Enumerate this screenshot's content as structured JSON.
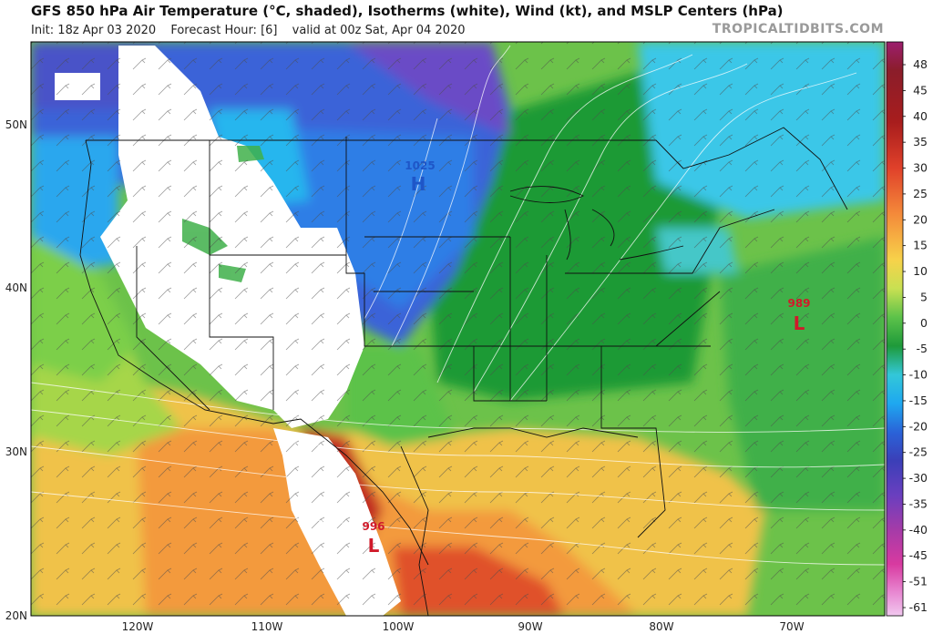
{
  "header": {
    "title": "GFS 850 hPa Air Temperature (°C, shaded), Isotherms (white), Wind (kt), and MSLP Centers (hPa)",
    "init": "Init: 18z Apr 03 2020",
    "forecast": "Forecast Hour: [6]",
    "valid": "valid at 00z Sat, Apr 04 2020",
    "brand": "TROPICALTIDBITS.COM"
  },
  "axes": {
    "lat_labels": [
      "50N",
      "40N",
      "30N",
      "20N"
    ],
    "lon_labels": [
      "120W",
      "110W",
      "100W",
      "90W",
      "80W",
      "70W"
    ]
  },
  "colorbar": {
    "ticks": [
      "48",
      "45",
      "40",
      "35",
      "30",
      "25",
      "20",
      "15",
      "10",
      "5",
      "0",
      "-5",
      "-10",
      "-15",
      "-20",
      "-25",
      "-30",
      "-35",
      "-40",
      "-45",
      "-51",
      "-61"
    ]
  },
  "pressure_centers": [
    {
      "type": "high",
      "symbol": "H",
      "value": "1025",
      "color": "#1e56c8"
    },
    {
      "type": "low",
      "symbol": "L",
      "value": "989",
      "color": "#d01a2a"
    },
    {
      "type": "low",
      "symbol": "L",
      "value": "996",
      "color": "#d01a2a"
    }
  ],
  "colors": {
    "warm": "#e8462a",
    "hot": "#a31c1c",
    "green": "#3fa832",
    "cold": "#3b5fd4",
    "cyan": "#2ec8f0",
    "purple": "#6a4bc6"
  }
}
